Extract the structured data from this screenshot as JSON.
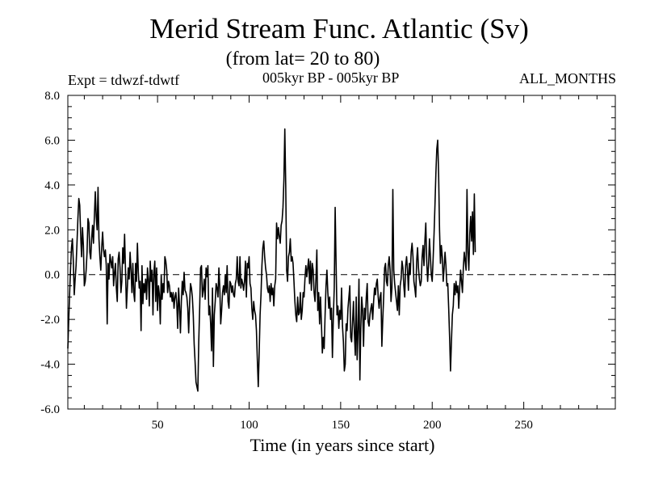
{
  "header": {
    "title": "Merid Stream Func. Atlantic (Sv)",
    "subtitle": "(from lat= 20 to 80)",
    "expt": "Expt = tdwzf-tdwtf",
    "period": "005kyr BP - 005kyr BP",
    "months": "ALL_MONTHS"
  },
  "chart_data": {
    "type": "line",
    "title": "Merid Stream Func. Atlantic (Sv)",
    "xlabel": "Time (in years since start)",
    "ylabel": "",
    "xlim": [
      1,
      300
    ],
    "ylim": [
      -6.0,
      8.0
    ],
    "x_ticks": [
      50,
      100,
      150,
      200,
      250
    ],
    "y_ticks": [
      -6.0,
      -4.0,
      -2.0,
      0.0,
      2.0,
      4.0,
      6.0,
      8.0
    ],
    "y_tick_labels": [
      "-6.0",
      "-4.0",
      "-2.0",
      "0.0",
      "2.0",
      "4.0",
      "6.0",
      "8.0"
    ],
    "reference_line": 0.0,
    "grid": false,
    "line_color": "#000000",
    "x_start": 1,
    "x_step": 0.5,
    "series": [
      {
        "values": [
          -3.3,
          -2.0,
          -0.8,
          0.3,
          1.2,
          1.6,
          0.6,
          -0.9,
          -0.2,
          0.4,
          1.4,
          2.5,
          3.4,
          3.1,
          1.8,
          0.8,
          2.1,
          1.3,
          -0.5,
          -0.3,
          0.2,
          1.0,
          2.5,
          2.3,
          1.0,
          0.7,
          1.6,
          2.2,
          1.4,
          2.6,
          3.7,
          2.6,
          2.0,
          3.9,
          1.6,
          0.8,
          0.2,
          1.2,
          1.9,
          1.1,
          0.8,
          1.1,
          0.4,
          -2.2,
          0.5,
          -0.2,
          0.9,
          0.6,
          0.3,
          0.8,
          -0.5,
          0.1,
          0.5,
          -0.6,
          -1.2,
          0.7,
          1.0,
          0.3,
          -0.8,
          -0.3,
          1.2,
          0.5,
          1.8,
          0.2,
          -1.5,
          -0.6,
          0.3,
          -0.2,
          1.0,
          0.2,
          -0.8,
          0.5,
          -0.8,
          -1.2,
          0.5,
          -0.3,
          1.4,
          0.1,
          -0.6,
          -0.3,
          -2.5,
          0.4,
          -1.3,
          -0.4,
          -0.8,
          -0.2,
          -1.1,
          0.3,
          -0.2,
          -1.4,
          0.6,
          -0.3,
          0.2,
          -1.8,
          0.1,
          0.6,
          -1.2,
          0.3,
          -1.6,
          -0.5,
          -0.9,
          -2.2,
          0.0,
          -1.1,
          -0.4,
          -0.8,
          0.8,
          0.6,
          0.2,
          -0.8,
          -0.3,
          -0.5,
          -1.0,
          -0.8,
          -1.2,
          -0.8,
          -1.5,
          -1.0,
          -0.8,
          -1.3,
          -2.4,
          -0.6,
          -1.4,
          -2.6,
          -1.2,
          -0.3,
          -0.9,
          0.1,
          -0.7,
          -0.8,
          -1.0,
          -1.5,
          -2.6,
          -1.3,
          -0.4,
          -0.6,
          -1.0,
          -1.8,
          -3.1,
          -3.9,
          -4.8,
          -5.0,
          -5.2,
          -3.0,
          -1.5,
          0.3,
          0.4,
          -1.0,
          -0.7,
          -0.2,
          -1.1,
          0.3,
          -0.1,
          0.4,
          -1.8,
          -1.4,
          -2.2,
          -3.4,
          -0.6,
          -4.1,
          -1.8,
          -1.2,
          -0.4,
          -0.6,
          -1.0,
          0.3,
          -0.6,
          -2.2,
          -1.6,
          -0.8,
          -0.5,
          -0.9,
          0.0,
          -0.8,
          0.4,
          -1.2,
          -1.5,
          -0.3,
          -0.4,
          -0.8,
          -0.5,
          -0.9,
          -1.0,
          -0.4,
          -0.2,
          0.8,
          -0.3,
          -0.5,
          0.8,
          -0.6,
          -0.2,
          -0.4,
          -0.7,
          -0.3,
          0.6,
          -1.0,
          0.5,
          0.3,
          0.8,
          -0.4,
          -0.6,
          -1.5,
          -2.0,
          -1.2,
          -1.6,
          -1.8,
          -2.5,
          -3.8,
          -5.0,
          -3.5,
          -1.8,
          -0.9,
          0.4,
          1.2,
          1.5,
          0.8,
          0.3,
          0.0,
          -0.6,
          -0.8,
          -0.5,
          -1.2,
          -0.4,
          -0.9,
          -0.6,
          -1.4,
          -0.5,
          -0.2,
          2.3,
          1.6,
          2.1,
          1.7,
          1.4,
          2.2,
          2.4,
          3.0,
          4.2,
          6.5,
          4.0,
          0.2,
          -0.3,
          0.8,
          1.0,
          1.6,
          0.6,
          0.8,
          0.5,
          -0.3,
          -1.2,
          -1.8,
          -2.1,
          -1.0,
          -1.8,
          -1.7,
          -0.8,
          -2.0,
          -1.6,
          -0.8,
          -1.0,
          -0.2,
          0.4,
          -0.1,
          0.3,
          0.7,
          -0.4,
          0.6,
          -0.7,
          0.5,
          0.2,
          -0.8,
          -1.2,
          -0.2,
          1.1,
          -1.6,
          -0.8,
          -2.2,
          -1.0,
          -2.2,
          -3.5,
          -2.8,
          -3.3,
          -1.8,
          -0.5,
          0.2,
          -0.8,
          -1.5,
          -1.0,
          -2.0,
          -1.5,
          -3.7,
          -1.9,
          -0.6,
          3.0,
          0.5,
          -1.8,
          -1.4,
          -2.4,
          -1.6,
          -2.0,
          -0.6,
          -2.3,
          -3.0,
          -4.3,
          -4.0,
          -2.2,
          -2.5,
          -1.5,
          -1.0,
          -0.5,
          -2.8,
          -3.0,
          -2.1,
          -1.2,
          -2.6,
          -3.6,
          -1.0,
          -3.8,
          -2.5,
          -0.2,
          -4.7,
          -2.4,
          -1.0,
          -1.6,
          -3.2,
          -1.5,
          -2.0,
          -1.0,
          -0.4,
          -2.1,
          -2.3,
          -1.8,
          -1.5,
          -1.3,
          -2.0,
          -1.2,
          -0.6,
          -0.9,
          -0.4,
          -0.2,
          -1.0,
          -1.5,
          -1.0,
          -0.8,
          -3.2,
          -2.0,
          -1.0,
          0.3,
          0.5,
          -0.3,
          -0.5,
          0.4,
          0.8,
          0.2,
          -1.2,
          -0.6,
          3.8,
          0.2,
          -0.4,
          -0.8,
          -1.2,
          -1.6,
          -0.5,
          -1.8,
          -0.5,
          -0.2,
          0.6,
          0.3,
          -0.5,
          -1.0,
          0.4,
          0.8,
          0.2,
          -0.7,
          0.5,
          0.0,
          1.0,
          1.4,
          0.8,
          -0.3,
          -0.6,
          -1.0,
          0.6,
          1.2,
          0.3,
          -0.2,
          -0.5,
          -0.3,
          0.8,
          1.3,
          0.4,
          1.5,
          2.3,
          0.6,
          -0.3,
          0.4,
          1.6,
          0.8,
          0.0,
          -0.3,
          0.7,
          1.8,
          3.1,
          4.5,
          5.6,
          6.0,
          4.5,
          2.0,
          0.5,
          1.3,
          0.8,
          -0.3,
          0.3,
          1.0,
          0.4,
          -0.5,
          -0.4,
          -1.5,
          -2.8,
          -4.3,
          -3.0,
          -1.8,
          -1.4,
          -0.4,
          -0.9,
          -0.3,
          -0.8,
          -0.5,
          -1.5,
          -0.6,
          0.2,
          -0.3,
          -0.8,
          0.3,
          1.0,
          0.6,
          0.2,
          3.8,
          1.0,
          0.2,
          1.8,
          2.6,
          1.5,
          2.8,
          0.9,
          3.6,
          1.0
        ]
      }
    ]
  }
}
